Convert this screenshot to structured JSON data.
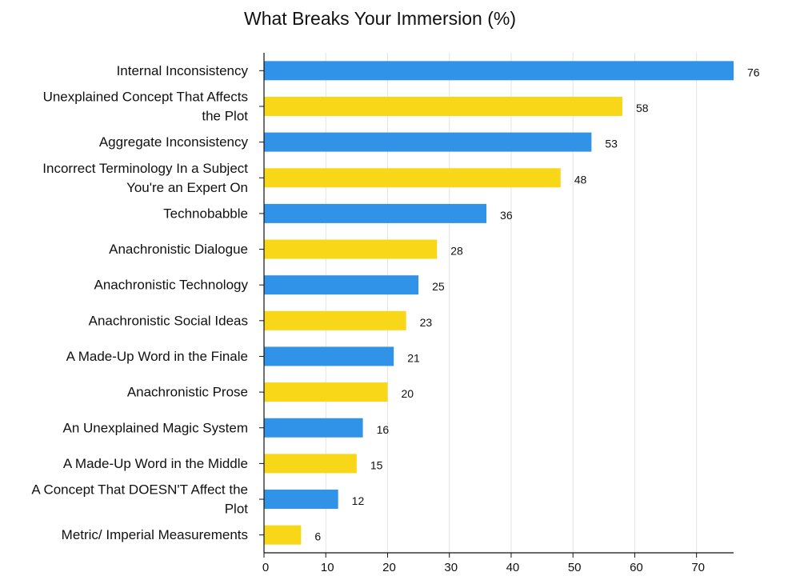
{
  "chart_data": {
    "type": "bar",
    "orientation": "horizontal",
    "title": "What Breaks Your Immersion (%)",
    "xlabel": "",
    "ylabel": "",
    "xlim": [
      0,
      76
    ],
    "x_ticks": [
      0,
      10,
      20,
      30,
      40,
      50,
      60,
      70
    ],
    "grid": true,
    "legend": "none",
    "colors": [
      "#3193e8",
      "#f8d618"
    ],
    "categories": [
      [
        "Internal Inconsistency"
      ],
      [
        "Unexplained Concept That Affects",
        "the Plot"
      ],
      [
        "Aggregate Inconsistency"
      ],
      [
        "Incorrect Terminology In a Subject",
        "You're an Expert On"
      ],
      [
        "Technobabble"
      ],
      [
        "Anachronistic Dialogue"
      ],
      [
        "Anachronistic Technology"
      ],
      [
        "Anachronistic Social Ideas"
      ],
      [
        "A Made-Up Word in the Finale"
      ],
      [
        "Anachronistic Prose"
      ],
      [
        "An Unexplained Magic System"
      ],
      [
        "A Made-Up Word in the Middle"
      ],
      [
        "A Concept That DOESN'T Affect the",
        "Plot"
      ],
      [
        "Metric/ Imperial Measurements"
      ]
    ],
    "values": [
      76,
      58,
      53,
      48,
      36,
      28,
      25,
      23,
      21,
      20,
      16,
      15,
      12,
      6
    ]
  }
}
